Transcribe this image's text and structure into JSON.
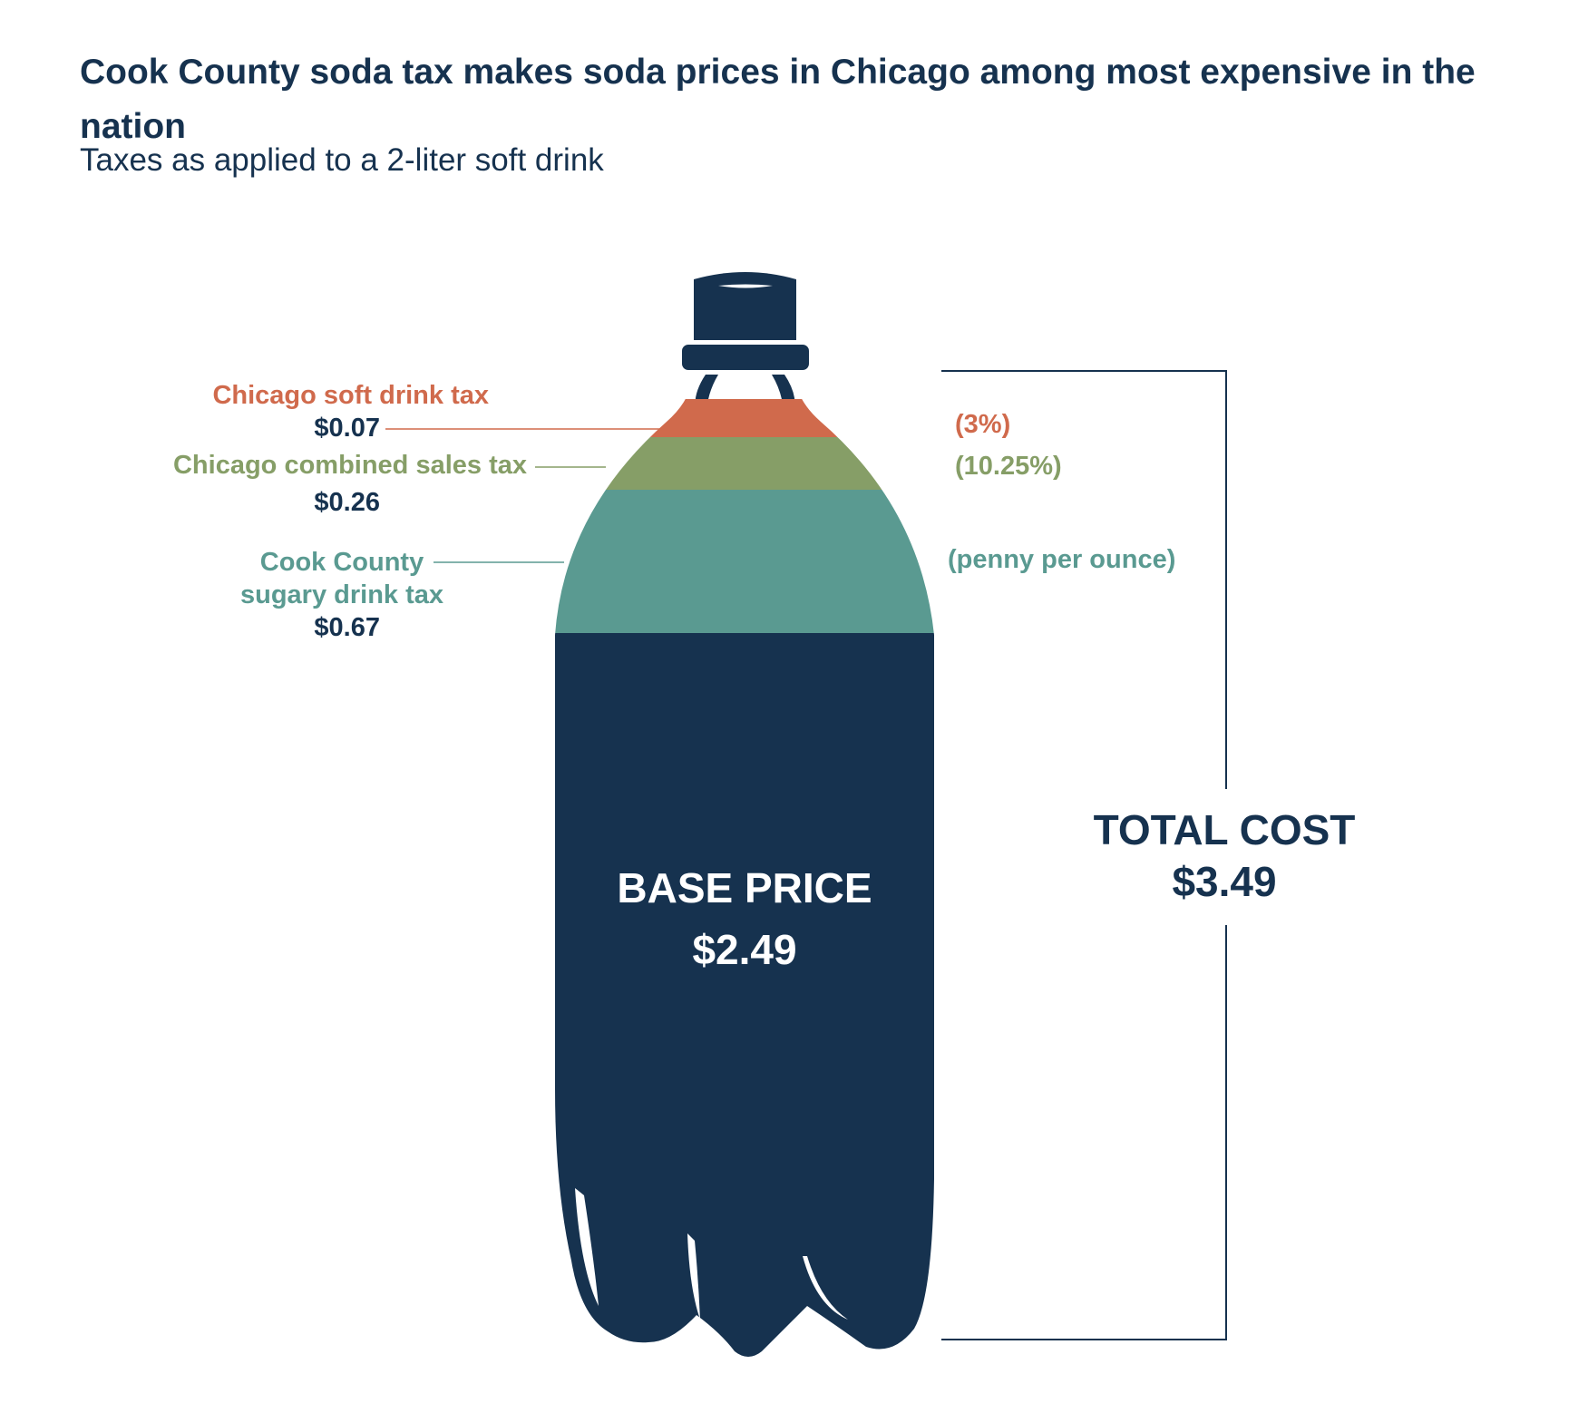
{
  "title": "Cook County soda tax makes soda prices in Chicago among most expensive in the nation",
  "subtitle": "Taxes as applied to a 2-liter soft drink",
  "chart_data": {
    "type": "bar",
    "stacked": true,
    "categories": [
      "2-liter soft drink"
    ],
    "series": [
      {
        "name": "BASE PRICE",
        "value": 2.49,
        "value_label": "$2.49",
        "color": "#16324f"
      },
      {
        "name": "Cook County sugary drink tax",
        "value": 0.67,
        "value_label": "$0.67",
        "rate": "(penny per ounce)",
        "color": "#5a9a91"
      },
      {
        "name": "Chicago combined sales tax",
        "value": 0.26,
        "value_label": "$0.26",
        "rate": "(10.25%)",
        "color": "#869e67"
      },
      {
        "name": "Chicago soft drink tax",
        "value": 0.07,
        "value_label": "$0.07",
        "rate": "(3%)",
        "color": "#d06a4c"
      }
    ],
    "total": {
      "label": "TOTAL COST",
      "value": 3.49,
      "value_label": "$3.49"
    }
  }
}
